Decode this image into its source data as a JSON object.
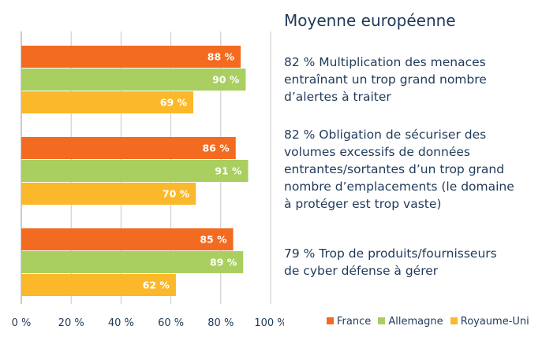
{
  "chart_data": {
    "type": "bar",
    "orientation": "horizontal",
    "title": "",
    "xlabel": "",
    "ylabel": "",
    "xlim": [
      0,
      100
    ],
    "grid": true,
    "legend_position": "bottom-right",
    "x_ticks": [
      "0 %",
      "20 %",
      "40 %",
      "60 %",
      "80 %",
      "100 %"
    ],
    "groups": 3,
    "series": [
      {
        "name": "France",
        "color": "#f26b21",
        "values": [
          88,
          86,
          85
        ],
        "labels": [
          "88 %",
          "86 %",
          "85 %"
        ]
      },
      {
        "name": "Allemagne",
        "color": "#a8cf5f",
        "values": [
          90,
          91,
          89
        ],
        "labels": [
          "90 %",
          "91 %",
          "89 %"
        ]
      },
      {
        "name": "Royaume-Uni",
        "color": "#fbb82a",
        "values": [
          69,
          70,
          62
        ],
        "labels": [
          "69 %",
          "70 %",
          "62 %"
        ]
      }
    ]
  },
  "panel": {
    "title": "Moyenne européenne",
    "items": [
      {
        "lines": [
          "82 % Multiplication des menaces",
          "entraînant un trop grand nombre",
          "d’alertes à traiter"
        ]
      },
      {
        "lines": [
          "82 % Obligation de sécuriser des",
          "volumes excessifs de données",
          "entrantes/sortantes d’un trop grand",
          "nombre d’emplacements (le domaine",
          "à protéger est trop vaste)"
        ]
      },
      {
        "lines": [
          "79 % Trop de produits/fournisseurs",
          "de cyber défense à gérer"
        ]
      }
    ]
  }
}
